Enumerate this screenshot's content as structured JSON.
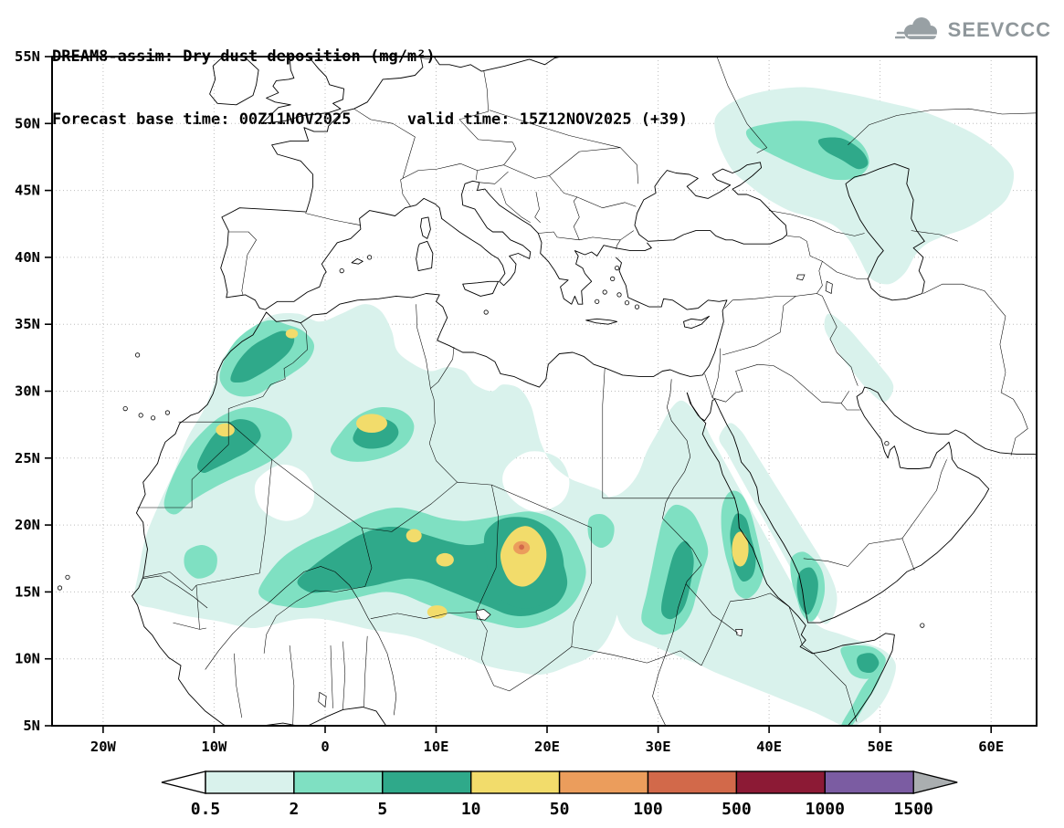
{
  "header": {
    "title_line1": "DREAM8-assim: Dry dust deposition (mg/m²)",
    "title_line2": "Forecast base time: 00Z11NOV2025      valid time: 15Z12NOV2025 (+39)",
    "logo_text": "SEEVCCC"
  },
  "axes": {
    "x_ticks": [
      {
        "v": -20,
        "label": "20W"
      },
      {
        "v": -10,
        "label": "10W"
      },
      {
        "v": 0,
        "label": "0"
      },
      {
        "v": 10,
        "label": "10E"
      },
      {
        "v": 20,
        "label": "20E"
      },
      {
        "v": 30,
        "label": "30E"
      },
      {
        "v": 40,
        "label": "40E"
      },
      {
        "v": 50,
        "label": "50E"
      },
      {
        "v": 60,
        "label": "60E"
      }
    ],
    "y_ticks": [
      {
        "v": 5,
        "label": "5N"
      },
      {
        "v": 10,
        "label": "10N"
      },
      {
        "v": 15,
        "label": "15N"
      },
      {
        "v": 20,
        "label": "20N"
      },
      {
        "v": 25,
        "label": "25N"
      },
      {
        "v": 30,
        "label": "30N"
      },
      {
        "v": 35,
        "label": "35N"
      },
      {
        "v": 40,
        "label": "40N"
      },
      {
        "v": 45,
        "label": "45N"
      },
      {
        "v": 50,
        "label": "50N"
      },
      {
        "v": 55,
        "label": "55N"
      }
    ]
  },
  "colorbar": {
    "labels": [
      "0.5",
      "2",
      "5",
      "10",
      "50",
      "100",
      "500",
      "1000",
      "1500"
    ],
    "box_colors": [
      "#d9f2ec",
      "#7fe0c2",
      "#2fa98a",
      "#f2dc6b",
      "#eb9d5c",
      "#d2694a",
      "#8c1a35",
      "#7b5ca2"
    ],
    "left_arrow_color": "#ffffff",
    "right_arrow_color": "#aaaeb0"
  },
  "map_colors": {
    "pale": "#d9f2ec",
    "light": "#7fe0c2",
    "mid": "#2fa98a",
    "yellow": "#f2dc6b",
    "orange": "#eb9d5c",
    "red": "#d2694a"
  }
}
